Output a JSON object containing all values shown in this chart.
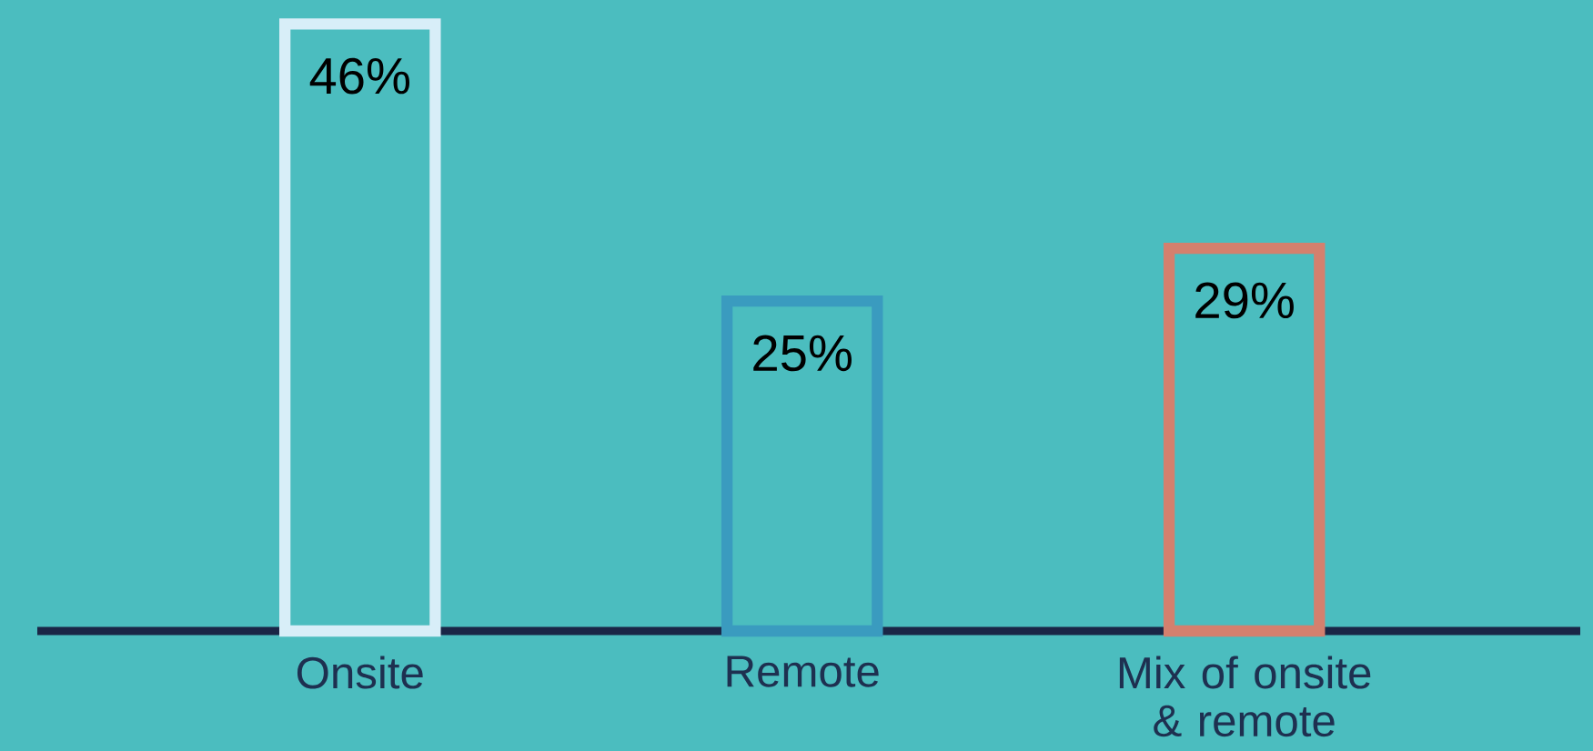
{
  "chart_data": {
    "type": "bar",
    "categories": [
      "Onsite",
      "Remote",
      "Mix of onsite & remote"
    ],
    "values": [
      46,
      25,
      29
    ],
    "value_labels": [
      "46%",
      "25%",
      "29%"
    ],
    "colors": [
      "#d8eef8",
      "#3a9bbf",
      "#d4806e"
    ],
    "grid": false,
    "tick_labels": "x"
  }
}
